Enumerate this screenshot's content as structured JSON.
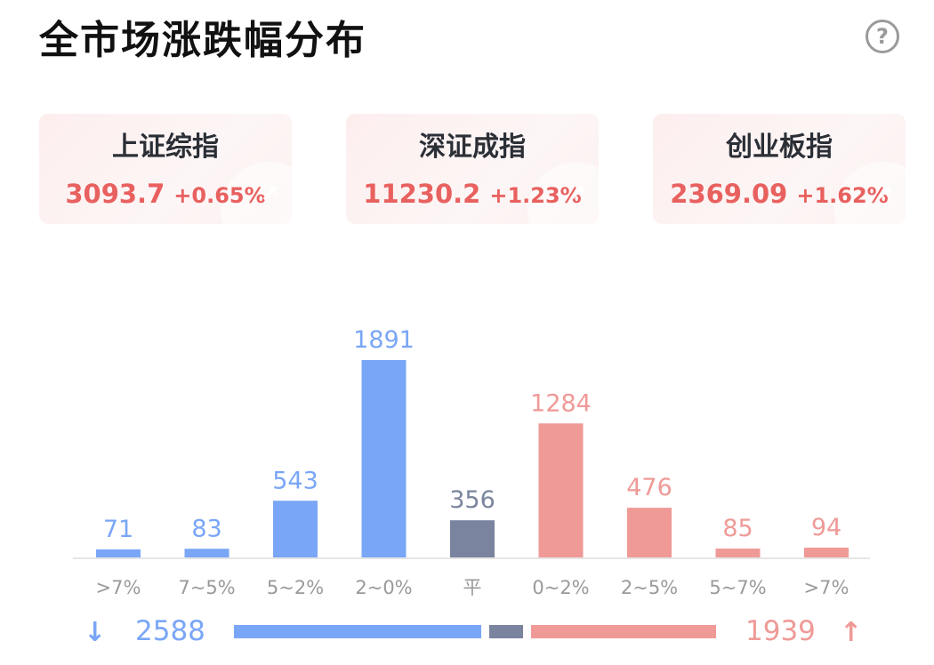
{
  "title": "全市场涨跌幅分布",
  "help_icon": "question-circle-icon",
  "indices": [
    {
      "name": "上证综指",
      "value": "3093.7",
      "change": "+0.65%"
    },
    {
      "name": "深证成指",
      "value": "11230.2",
      "change": "+1.23%"
    },
    {
      "name": "创业板指",
      "value": "2369.09",
      "change": "+1.62%"
    }
  ],
  "colors": {
    "down": "#7aa6f7",
    "flat": "#7a849e",
    "up": "#ef9a97",
    "index_text": "#e8615f"
  },
  "chart_data": {
    "type": "bar",
    "categories": [
      ">7%",
      "7~5%",
      "5~2%",
      "2~0%",
      "平",
      "0~2%",
      "2~5%",
      "5~7%",
      ">7%"
    ],
    "values": [
      71,
      83,
      543,
      1891,
      356,
      1284,
      476,
      85,
      94
    ],
    "groups": [
      "down",
      "down",
      "down",
      "down",
      "flat",
      "up",
      "up",
      "up",
      "up"
    ],
    "title": "",
    "xlabel": "",
    "ylabel": "",
    "ylim": [
      0,
      1891
    ],
    "grid": false
  },
  "summary": {
    "down_total": "2588",
    "up_total": "1939",
    "flat_total": 356
  }
}
